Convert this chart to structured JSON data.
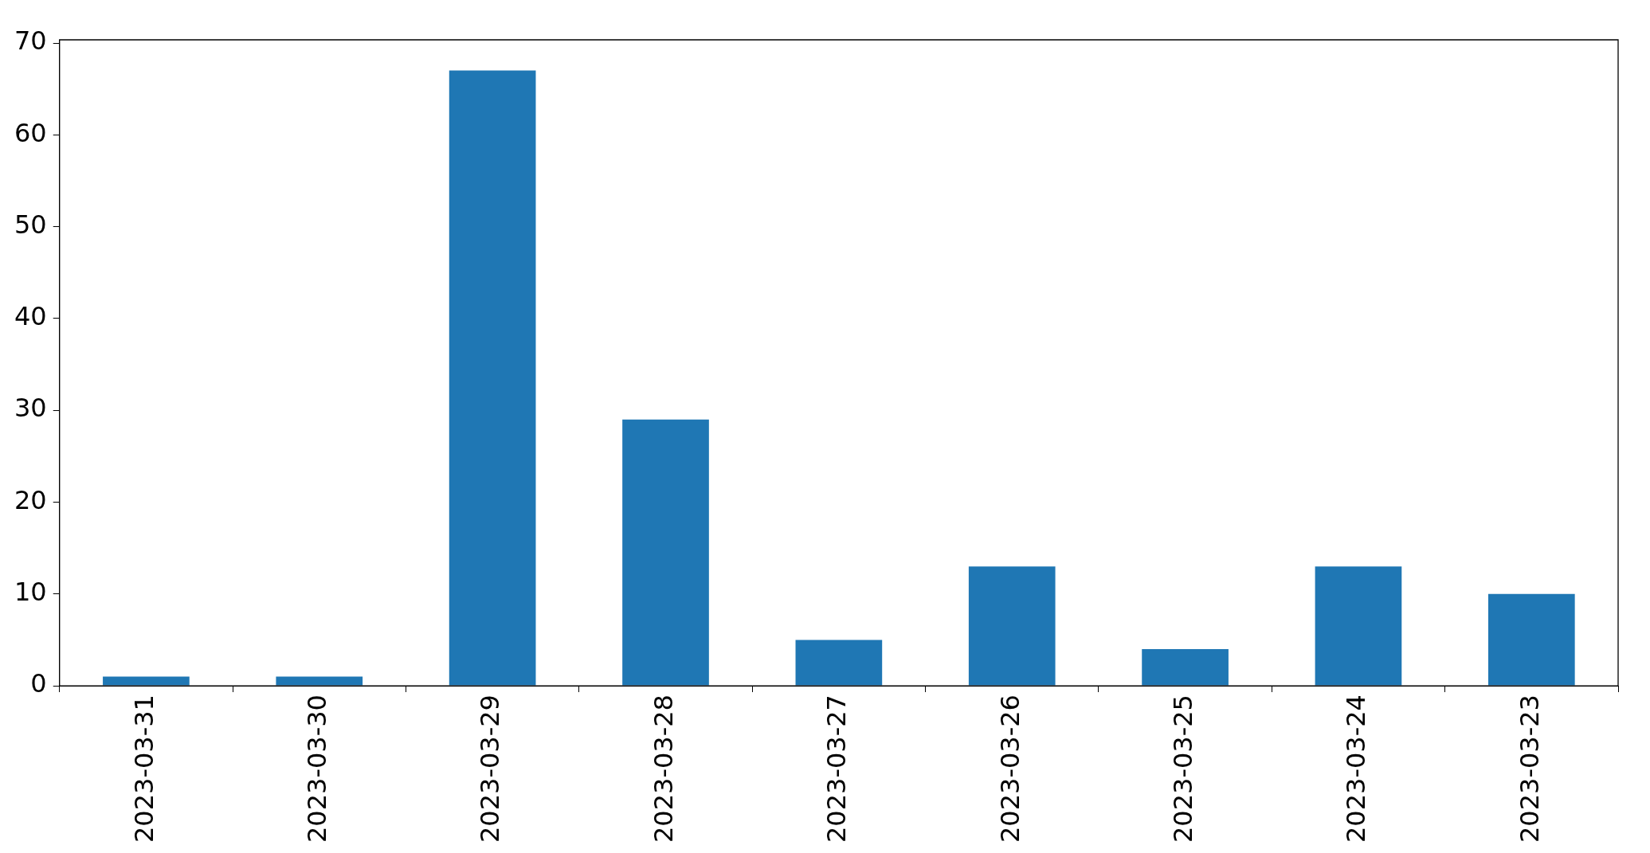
{
  "chart_data": {
    "type": "bar",
    "categories": [
      "2023-03-31",
      "2023-03-30",
      "2023-03-29",
      "2023-03-28",
      "2023-03-27",
      "2023-03-26",
      "2023-03-25",
      "2023-03-24",
      "2023-03-23"
    ],
    "values": [
      1,
      1,
      67,
      29,
      5,
      13,
      4,
      13,
      10
    ],
    "color": "#1f77b4",
    "ylim": [
      0,
      70.35
    ],
    "yticks": [
      0,
      10,
      20,
      30,
      40,
      50,
      60,
      70
    ],
    "grid": false,
    "legend": false
  }
}
